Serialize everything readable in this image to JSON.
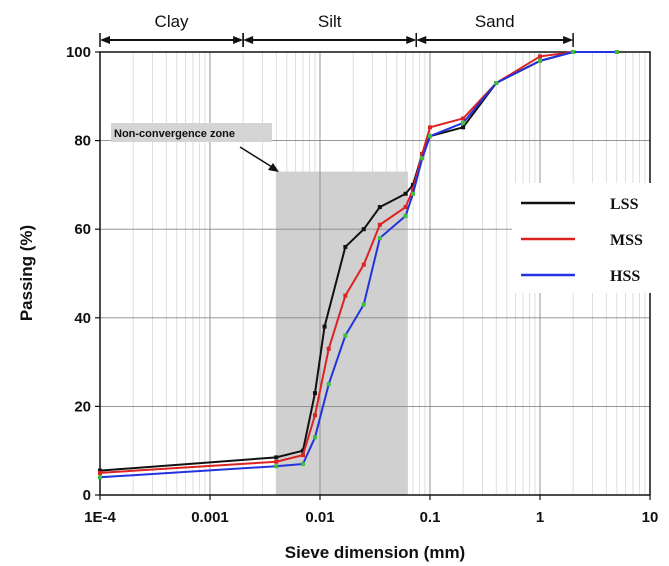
{
  "chart_data": {
    "type": "line",
    "x_scale": "log",
    "xlim": [
      0.0001,
      10
    ],
    "ylim": [
      0,
      100
    ],
    "xlabel": "Sieve dimension (mm)",
    "ylabel": "Passing (%)",
    "xticks": [
      {
        "value": 0.0001,
        "label": "1E-4"
      },
      {
        "value": 0.001,
        "label": "0.001"
      },
      {
        "value": 0.01,
        "label": "0.01"
      },
      {
        "value": 0.1,
        "label": "0.1"
      },
      {
        "value": 1,
        "label": "1"
      },
      {
        "value": 10,
        "label": "10"
      }
    ],
    "yticks": [
      {
        "value": 0,
        "label": "0"
      },
      {
        "value": 20,
        "label": "20"
      },
      {
        "value": 40,
        "label": "40"
      },
      {
        "value": 60,
        "label": "60"
      },
      {
        "value": 80,
        "label": "80"
      },
      {
        "value": 100,
        "label": "100"
      }
    ],
    "grid": true,
    "zones": [
      {
        "label": "Clay",
        "from": 0.0001,
        "to": 0.002
      },
      {
        "label": "Silt",
        "from": 0.002,
        "to": 0.075
      },
      {
        "label": "Sand",
        "from": 0.075,
        "to": 2
      }
    ],
    "shaded_region": {
      "label": "Non-convergence zone",
      "x_from": 0.004,
      "x_to": 0.063,
      "y_from": 0,
      "y_to": 73
    },
    "series": [
      {
        "name": "LSS",
        "color": "#111111",
        "points": [
          [
            0.0001,
            5.5
          ],
          [
            0.004,
            8.5
          ],
          [
            0.007,
            10
          ],
          [
            0.009,
            23
          ],
          [
            0.011,
            38
          ],
          [
            0.017,
            56
          ],
          [
            0.025,
            60
          ],
          [
            0.035,
            65
          ],
          [
            0.06,
            68
          ],
          [
            0.07,
            70
          ],
          [
            0.085,
            77
          ],
          [
            0.1,
            81
          ],
          [
            0.2,
            83
          ],
          [
            0.4,
            93
          ],
          [
            1,
            98
          ],
          [
            2,
            100
          ],
          [
            5,
            100
          ]
        ]
      },
      {
        "name": "MSS",
        "color": "#dd2222",
        "points": [
          [
            0.0001,
            5
          ],
          [
            0.004,
            7.5
          ],
          [
            0.007,
            9
          ],
          [
            0.009,
            18
          ],
          [
            0.012,
            33
          ],
          [
            0.017,
            45
          ],
          [
            0.025,
            52
          ],
          [
            0.035,
            61
          ],
          [
            0.06,
            65
          ],
          [
            0.07,
            69
          ],
          [
            0.085,
            77
          ],
          [
            0.1,
            83
          ],
          [
            0.2,
            85
          ],
          [
            0.4,
            93
          ],
          [
            1,
            99
          ],
          [
            2,
            100
          ],
          [
            5,
            100
          ]
        ]
      },
      {
        "name": "HSS",
        "color": "#2233dd",
        "points": [
          [
            0.0001,
            4
          ],
          [
            0.004,
            6.5
          ],
          [
            0.007,
            7
          ],
          [
            0.009,
            13
          ],
          [
            0.012,
            25
          ],
          [
            0.017,
            36
          ],
          [
            0.025,
            43
          ],
          [
            0.035,
            58
          ],
          [
            0.06,
            63
          ],
          [
            0.07,
            68
          ],
          [
            0.085,
            76
          ],
          [
            0.1,
            81
          ],
          [
            0.2,
            84
          ],
          [
            0.4,
            93
          ],
          [
            1,
            98
          ],
          [
            2,
            100
          ],
          [
            5,
            100
          ]
        ]
      }
    ]
  }
}
